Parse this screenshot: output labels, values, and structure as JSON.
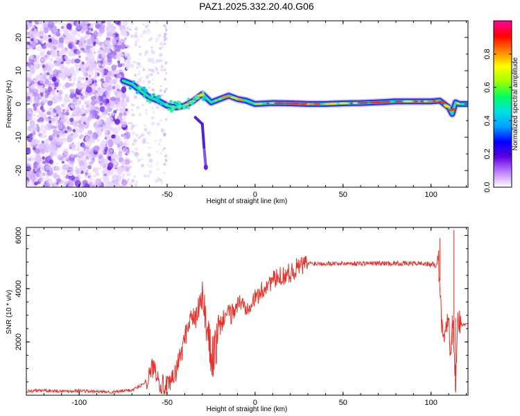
{
  "title": "PAZ1.2025.332.20.40.G06",
  "chart_data": [
    {
      "type": "heatmap",
      "title": "PAZ1.2025.332.20.40.G06",
      "xlabel": "Height of straight line (km)",
      "ylabel": "Frequency (Hz)",
      "xlim": [
        -130,
        121
      ],
      "ylim": [
        -25,
        25
      ],
      "xticks": [
        -100,
        -50,
        0,
        50,
        100
      ],
      "yticks": [
        -20,
        -10,
        0,
        10,
        20
      ],
      "xtick_labels": [
        "-100",
        "-50",
        "0",
        "50",
        "100"
      ],
      "ytick_labels": [
        "-20",
        "-10",
        "0",
        "10",
        "20"
      ],
      "ridge": {
        "x": [
          -75,
          -70,
          -65,
          -60,
          -55,
          -50,
          -45,
          -40,
          -35,
          -30,
          -25,
          -20,
          -15,
          -10,
          -5,
          0,
          10,
          20,
          30,
          40,
          50,
          60,
          70,
          80,
          90,
          100,
          105,
          110,
          112,
          114,
          116,
          121
        ],
        "y": [
          7,
          6,
          4,
          2,
          1,
          -0.5,
          -1,
          -0.5,
          1,
          3,
          0.5,
          1.5,
          2.5,
          1.5,
          1,
          0,
          0.3,
          0.2,
          0,
          0,
          0.2,
          0.3,
          0.5,
          0.8,
          0.8,
          0.8,
          1,
          -1,
          -3,
          0.5,
          0,
          0
        ]
      },
      "branch": {
        "x": [
          -34,
          -32,
          -30,
          -29,
          -28
        ],
        "y": [
          -4,
          -5,
          -6,
          -13,
          -19
        ]
      },
      "colorbar": {
        "label": "Normalized spectral amplitude",
        "range": [
          0,
          1
        ],
        "ticks": [
          0.0,
          0.2,
          0.4,
          0.6,
          0.8
        ],
        "tick_labels": [
          "0.0",
          "0.2",
          "0.4",
          "0.6",
          "0.8"
        ],
        "colors": [
          "#ffffff",
          "#c080ff",
          "#6000e0",
          "#0000ff",
          "#00a0ff",
          "#00e0e0",
          "#00ff60",
          "#a0ff00",
          "#ffff00",
          "#ff8000",
          "#ff0000",
          "#ff00a0"
        ]
      }
    },
    {
      "type": "line",
      "xlabel": "Height of straight line (km)",
      "ylabel": "SNR (10 * v/v)",
      "xlim": [
        -130,
        121
      ],
      "ylim": [
        0,
        6300
      ],
      "xticks": [
        -100,
        -50,
        0,
        50,
        100
      ],
      "yticks": [
        2000,
        4000,
        6000
      ],
      "xtick_labels": [
        "-100",
        "-50",
        "0",
        "50",
        "100"
      ],
      "ytick_labels": [
        "2000",
        "4000",
        "6000"
      ],
      "color": "#e8302a",
      "series": [
        {
          "name": "SNR",
          "x": [
            -130,
            -120,
            -110,
            -100,
            -90,
            -80,
            -70,
            -65,
            -60,
            -58,
            -56,
            -54,
            -52,
            -50,
            -48,
            -45,
            -42,
            -40,
            -38,
            -36,
            -34,
            -32,
            -30,
            -28,
            -26,
            -24,
            -22,
            -20,
            -18,
            -16,
            -14,
            -12,
            -10,
            -8,
            -6,
            -4,
            -2,
            0,
            2,
            4,
            6,
            8,
            10,
            12,
            14,
            16,
            18,
            20,
            22,
            24,
            26,
            28,
            30,
            35,
            40,
            50,
            60,
            70,
            80,
            90,
            95,
            100,
            103,
            104,
            105,
            106,
            107,
            108,
            110,
            111,
            112,
            113,
            114,
            115,
            116,
            118,
            121
          ],
          "y": [
            150,
            180,
            150,
            170,
            130,
            120,
            200,
            350,
            700,
            1100,
            900,
            500,
            350,
            300,
            400,
            900,
            1600,
            2100,
            2700,
            3000,
            2800,
            3300,
            3600,
            2600,
            1800,
            1400,
            1900,
            2500,
            2900,
            3100,
            3000,
            3200,
            3400,
            3500,
            3300,
            3400,
            3550,
            3600,
            3800,
            3900,
            4100,
            4250,
            4300,
            4350,
            4450,
            4500,
            4550,
            4600,
            4700,
            4800,
            4850,
            4900,
            4950,
            4950,
            4950,
            4950,
            4950,
            4950,
            4950,
            4950,
            4950,
            4900,
            4900,
            5200,
            4300,
            2500,
            2300,
            2600,
            2700,
            1600,
            3000,
            2000,
            300,
            2800,
            2700,
            2650,
            2650
          ]
        }
      ]
    }
  ]
}
